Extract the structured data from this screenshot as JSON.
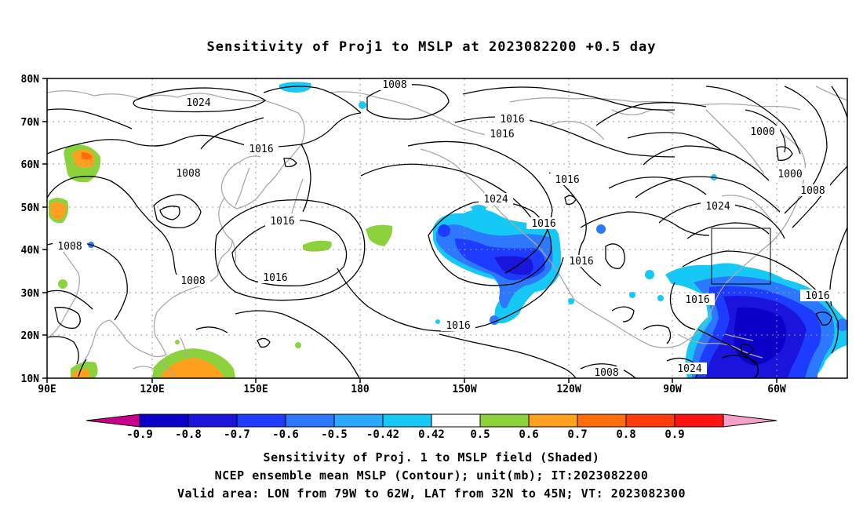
{
  "title": "Sensitivity of Proj1 to MSLP at 2023082200 +0.5 day",
  "map": {
    "lat_ticks": [
      "80N",
      "70N",
      "60N",
      "50N",
      "40N",
      "30N",
      "20N",
      "10N"
    ],
    "lon_ticks": [
      "90E",
      "120E",
      "150E",
      "180",
      "150W",
      "120W",
      "90W",
      "60W"
    ],
    "contour_labels": [
      "1008",
      "1024",
      "1016",
      "1008",
      "1016",
      "1016",
      "1000",
      "1000",
      "1008",
      "1024",
      "1016",
      "1008",
      "1016",
      "1016",
      "1016",
      "1016",
      "1016",
      "1024",
      "1008",
      "1008",
      "1016",
      "1016"
    ],
    "valid_box": {
      "lon": [
        -79,
        -62
      ],
      "lat": [
        32,
        45
      ]
    }
  },
  "colorbar": {
    "labels": [
      "-0.9",
      "-0.8",
      "-0.7",
      "-0.6",
      "-0.5",
      "-0.42",
      "0.42",
      "0.5",
      "0.6",
      "0.7",
      "0.8",
      "0.9"
    ],
    "colors": [
      "#c8008c",
      "#0a00c8",
      "#1a14dc",
      "#1e3cff",
      "#2c78ff",
      "#2ca8ff",
      "#16c8f5",
      "#ffffff",
      "#8cd23c",
      "#ffa01e",
      "#ff6e0a",
      "#ff3c0a",
      "#ff1414",
      "#f5a0c8"
    ]
  },
  "footer": {
    "line1": "Sensitivity of Proj. 1 to MSLP field (Shaded)",
    "line2": "NCEP ensemble mean MSLP (Contour); unit(mb); IT:2023082200",
    "line3": "Valid area: LON from 79W to 62W, LAT from 32N to 45N; VT: 2023082300"
  }
}
